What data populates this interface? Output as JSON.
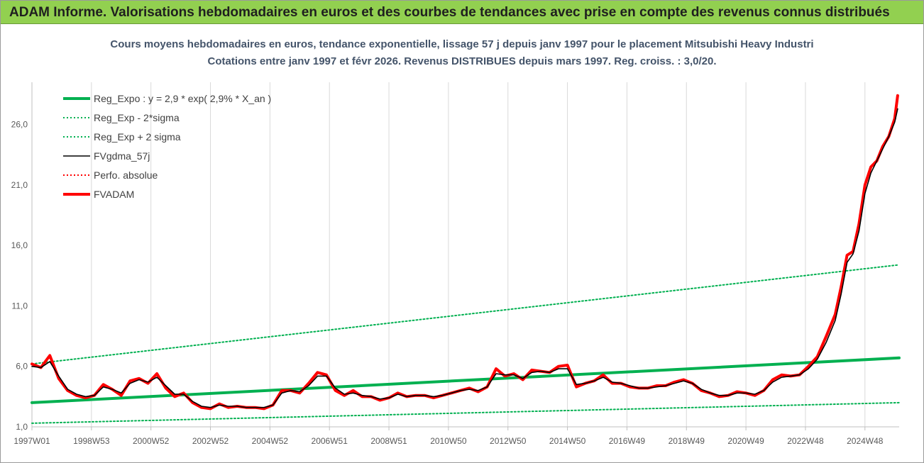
{
  "header": {
    "title": "ADAM Informe. Valorisations hebdomadaires en euros et des courbes de tendances avec prise en compte des revenus connus distribués"
  },
  "chart_data": {
    "type": "line",
    "title_line1": "Cours moyens hebdomadaires en euros, tendance exponentielle, lissage 57 j depuis janv 1997 pour le placement Mitsubishi Heavy Industri",
    "title_line2": "Cotations entre janv 1997 et févr 2026. Revenus DISTRIBUES depuis mars 1997. Reg. croiss. : 3,0/20.",
    "y_ticks": [
      "1,0",
      "6,0",
      "11,0",
      "16,0",
      "21,0",
      "26,0"
    ],
    "ylim": [
      1.0,
      29.5
    ],
    "x_ticks": [
      "1997W01",
      "1998W53",
      "2000W52",
      "2002W52",
      "2004W52",
      "2006W51",
      "2008W51",
      "2010W50",
      "2012W50",
      "2014W50",
      "2016W49",
      "2018W49",
      "2020W49",
      "2022W48",
      "2024W48"
    ],
    "x_tick_years": [
      1997.0,
      1999.0,
      2001.0,
      2003.0,
      2005.0,
      2007.0,
      2009.0,
      2011.0,
      2013.0,
      2015.0,
      2017.0,
      2019.0,
      2021.0,
      2023.0,
      2025.0
    ],
    "xlim": [
      1997.0,
      2026.15
    ],
    "grid": "vertical",
    "legend_position": "top-left",
    "legend": [
      {
        "label": "Reg_Expo : y = 2,9 * exp( 2,9% *  X_an )",
        "color": "#00b050",
        "style": "solid-thick"
      },
      {
        "label": "Reg_Exp - 2*sigma",
        "color": "#00b050",
        "style": "dotted"
      },
      {
        "label": "Reg_Exp + 2 sigma",
        "color": "#00b050",
        "style": "dotted"
      },
      {
        "label": "FVgdma_57j",
        "color": "#000000",
        "style": "solid"
      },
      {
        "label": "Perfo. absolue",
        "color": "#ff0000",
        "style": "dotted"
      },
      {
        "label": "FVADAM",
        "color": "#ff0000",
        "style": "solid-thick"
      }
    ],
    "series": [
      {
        "name": "Reg_Expo : y = 2,9 * exp( 2,9% *  X_an )",
        "x": [
          1997.0,
          2026.15
        ],
        "y": [
          3.0,
          6.7
        ]
      },
      {
        "name": "Reg_Exp - 2*sigma",
        "x": [
          1997.0,
          2026.15
        ],
        "y": [
          1.3,
          3.0
        ]
      },
      {
        "name": "Reg_Exp + 2 sigma",
        "x": [
          1997.0,
          2026.15
        ],
        "y": [
          6.2,
          14.4
        ]
      },
      {
        "name": "FVADAM",
        "x": [
          1997.0,
          1997.3,
          1997.6,
          1997.9,
          1998.2,
          1998.5,
          1998.8,
          1999.1,
          1999.4,
          1999.7,
          2000.0,
          2000.3,
          2000.6,
          2000.9,
          2001.2,
          2001.5,
          2001.8,
          2002.1,
          2002.4,
          2002.7,
          2003.0,
          2003.3,
          2003.6,
          2003.9,
          2004.2,
          2004.5,
          2004.8,
          2005.1,
          2005.4,
          2005.7,
          2006.0,
          2006.3,
          2006.6,
          2006.9,
          2007.2,
          2007.5,
          2007.8,
          2008.1,
          2008.4,
          2008.7,
          2009.0,
          2009.3,
          2009.6,
          2009.9,
          2010.2,
          2010.5,
          2010.8,
          2011.1,
          2011.4,
          2011.7,
          2012.0,
          2012.3,
          2012.6,
          2012.9,
          2013.2,
          2013.5,
          2013.8,
          2014.1,
          2014.4,
          2014.7,
          2015.0,
          2015.3,
          2015.6,
          2015.9,
          2016.2,
          2016.5,
          2016.8,
          2017.1,
          2017.4,
          2017.7,
          2018.0,
          2018.3,
          2018.6,
          2018.9,
          2019.2,
          2019.5,
          2019.8,
          2020.1,
          2020.4,
          2020.7,
          2021.0,
          2021.3,
          2021.6,
          2021.9,
          2022.2,
          2022.5,
          2022.8,
          2023.1,
          2023.4,
          2023.7,
          2024.0,
          2024.2,
          2024.4,
          2024.6,
          2024.8,
          2025.0,
          2025.2,
          2025.4,
          2025.6,
          2025.8,
          2026.0,
          2026.1
        ],
        "y": [
          6.2,
          5.9,
          6.9,
          5.0,
          4.0,
          3.6,
          3.4,
          3.6,
          4.5,
          4.1,
          3.6,
          4.8,
          5.0,
          4.6,
          5.4,
          4.2,
          3.5,
          3.8,
          3.0,
          2.6,
          2.5,
          2.9,
          2.6,
          2.7,
          2.6,
          2.6,
          2.5,
          2.8,
          4.0,
          4.0,
          3.8,
          4.6,
          5.5,
          5.3,
          4.0,
          3.6,
          4.0,
          3.5,
          3.5,
          3.2,
          3.4,
          3.8,
          3.5,
          3.6,
          3.6,
          3.4,
          3.6,
          3.8,
          4.0,
          4.2,
          3.9,
          4.3,
          5.8,
          5.2,
          5.4,
          4.9,
          5.7,
          5.6,
          5.5,
          6.0,
          6.1,
          4.3,
          4.6,
          4.8,
          5.3,
          4.6,
          4.6,
          4.3,
          4.2,
          4.2,
          4.4,
          4.4,
          4.7,
          4.9,
          4.6,
          4.0,
          3.8,
          3.5,
          3.6,
          3.9,
          3.8,
          3.6,
          4.0,
          4.9,
          5.3,
          5.2,
          5.3,
          6.0,
          6.8,
          8.5,
          10.3,
          12.6,
          15.2,
          15.5,
          17.8,
          21.0,
          22.5,
          23.0,
          24.2,
          25.0,
          26.5,
          28.4
        ]
      },
      {
        "name": "FVgdma_57j",
        "x": [
          1997.0,
          1997.3,
          1997.6,
          1997.9,
          1998.2,
          1998.5,
          1998.8,
          1999.1,
          1999.4,
          1999.7,
          2000.0,
          2000.3,
          2000.6,
          2000.9,
          2001.2,
          2001.5,
          2001.8,
          2002.1,
          2002.4,
          2002.7,
          2003.0,
          2003.3,
          2003.6,
          2003.9,
          2004.2,
          2004.5,
          2004.8,
          2005.1,
          2005.4,
          2005.7,
          2006.0,
          2006.3,
          2006.6,
          2006.9,
          2007.2,
          2007.5,
          2007.8,
          2008.1,
          2008.4,
          2008.7,
          2009.0,
          2009.3,
          2009.6,
          2009.9,
          2010.2,
          2010.5,
          2010.8,
          2011.1,
          2011.4,
          2011.7,
          2012.0,
          2012.3,
          2012.6,
          2012.9,
          2013.2,
          2013.5,
          2013.8,
          2014.1,
          2014.4,
          2014.7,
          2015.0,
          2015.3,
          2015.6,
          2015.9,
          2016.2,
          2016.5,
          2016.8,
          2017.1,
          2017.4,
          2017.7,
          2018.0,
          2018.3,
          2018.6,
          2018.9,
          2019.2,
          2019.5,
          2019.8,
          2020.1,
          2020.4,
          2020.7,
          2021.0,
          2021.3,
          2021.6,
          2021.9,
          2022.2,
          2022.5,
          2022.8,
          2023.1,
          2023.4,
          2023.7,
          2024.0,
          2024.2,
          2024.4,
          2024.6,
          2024.8,
          2025.0,
          2025.2,
          2025.4,
          2025.6,
          2025.8,
          2026.0,
          2026.1
        ],
        "y": [
          6.0,
          5.9,
          6.4,
          5.2,
          4.1,
          3.7,
          3.5,
          3.6,
          4.3,
          4.1,
          3.8,
          4.6,
          4.9,
          4.7,
          5.1,
          4.4,
          3.7,
          3.7,
          3.1,
          2.7,
          2.6,
          2.8,
          2.7,
          2.7,
          2.6,
          2.6,
          2.6,
          2.8,
          3.8,
          4.0,
          3.9,
          4.4,
          5.2,
          5.2,
          4.2,
          3.7,
          3.8,
          3.6,
          3.5,
          3.3,
          3.4,
          3.7,
          3.5,
          3.6,
          3.6,
          3.5,
          3.6,
          3.8,
          4.0,
          4.1,
          4.0,
          4.3,
          5.4,
          5.3,
          5.3,
          5.0,
          5.5,
          5.6,
          5.5,
          5.8,
          5.8,
          4.5,
          4.6,
          4.8,
          5.1,
          4.7,
          4.6,
          4.4,
          4.2,
          4.2,
          4.3,
          4.4,
          4.6,
          4.8,
          4.6,
          4.1,
          3.8,
          3.6,
          3.6,
          3.8,
          3.8,
          3.7,
          4.0,
          4.7,
          5.1,
          5.2,
          5.3,
          5.8,
          6.6,
          8.0,
          9.8,
          12.0,
          14.6,
          15.3,
          17.2,
          20.3,
          22.0,
          23.0,
          24.0,
          25.0,
          26.2,
          27.3
        ]
      }
    ]
  }
}
